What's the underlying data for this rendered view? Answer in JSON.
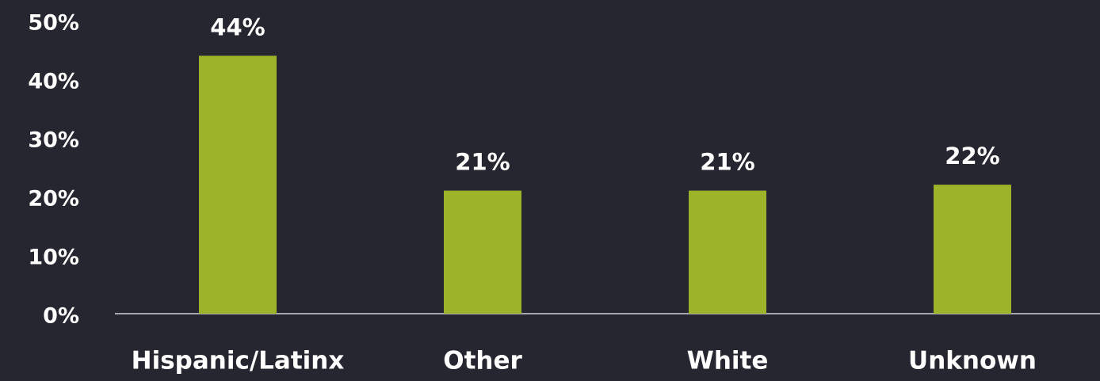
{
  "chart_data": {
    "type": "bar",
    "categories": [
      "Hispanic/Latinx",
      "Other",
      "White",
      "Unknown"
    ],
    "values": [
      44,
      21,
      21,
      22
    ],
    "value_labels": [
      "44%",
      "21%",
      "21%",
      "22%"
    ],
    "color": "#9db32a",
    "ylim": [
      0,
      50
    ],
    "yticks": [
      {
        "value": 0,
        "label": "0%"
      },
      {
        "value": 10,
        "label": "10%"
      },
      {
        "value": 20,
        "label": "20%"
      },
      {
        "value": 30,
        "label": "30%"
      },
      {
        "value": 40,
        "label": "40%"
      },
      {
        "value": 50,
        "label": "50%"
      }
    ],
    "grid": false
  }
}
